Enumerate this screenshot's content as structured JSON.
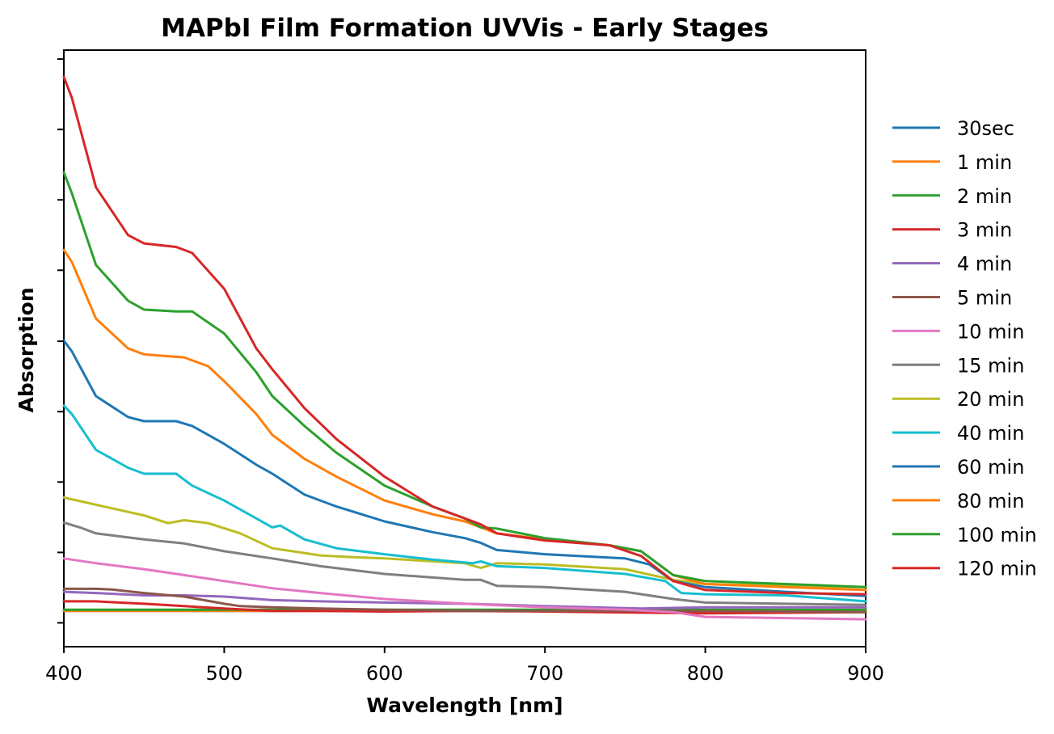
{
  "chart_data": {
    "type": "line",
    "title": "MAPbI Film Formation UVVis - Early Stages",
    "xlabel": "Wavelength [nm]",
    "ylabel": "Absorption",
    "xlim": [
      400,
      900
    ],
    "ylim": [
      0,
      1
    ],
    "x_ticks": [
      400,
      500,
      600,
      700,
      800,
      900
    ],
    "y_ticks": [
      0.04,
      0.158,
      0.276,
      0.394,
      0.512,
      0.631,
      0.749,
      0.867,
      0.985
    ],
    "y_tick_labels_visible": false,
    "grid": false,
    "legend_position": "outside-right",
    "series": [
      {
        "name": "30sec",
        "color": "#1f77b4",
        "x": [
          400,
          900
        ],
        "y": [
          0.06,
          0.06
        ]
      },
      {
        "name": "1 min",
        "color": "#ff7f0e",
        "x": [
          400,
          900
        ],
        "y": [
          0.06,
          0.06
        ]
      },
      {
        "name": "2 min",
        "color": "#2ca02c",
        "x": [
          400,
          900
        ],
        "y": [
          0.062,
          0.062
        ]
      },
      {
        "name": "3 min",
        "color": "#d62728",
        "x": [
          400,
          420,
          450,
          475,
          500,
          530,
          560,
          600,
          650,
          700,
          800,
          900
        ],
        "y": [
          0.076,
          0.076,
          0.072,
          0.068,
          0.064,
          0.06,
          0.06,
          0.059,
          0.06,
          0.059,
          0.056,
          0.058
        ]
      },
      {
        "name": "4 min",
        "color": "#9467bd",
        "x": [
          400,
          420,
          450,
          475,
          500,
          530,
          560,
          600,
          650,
          700,
          760,
          800,
          900
        ],
        "y": [
          0.092,
          0.09,
          0.086,
          0.086,
          0.084,
          0.078,
          0.076,
          0.074,
          0.072,
          0.068,
          0.064,
          0.066,
          0.066
        ]
      },
      {
        "name": "5 min",
        "color": "#8c564b",
        "x": [
          400,
          410,
          420,
          430,
          450,
          475,
          500,
          510,
          530,
          560,
          600,
          650,
          700,
          800,
          900
        ],
        "y": [
          0.097,
          0.097,
          0.097,
          0.096,
          0.09,
          0.084,
          0.072,
          0.068,
          0.066,
          0.064,
          0.062,
          0.06,
          0.06,
          0.06,
          0.058
        ]
      },
      {
        "name": "10 min",
        "color": "#e377c2",
        "x": [
          400,
          420,
          450,
          475,
          500,
          530,
          560,
          600,
          650,
          700,
          750,
          780,
          800,
          900
        ],
        "y": [
          0.148,
          0.14,
          0.13,
          0.12,
          0.11,
          0.098,
          0.09,
          0.08,
          0.072,
          0.066,
          0.062,
          0.058,
          0.05,
          0.046
        ]
      },
      {
        "name": "15 min",
        "color": "#7f7f7f",
        "x": [
          400,
          410,
          420,
          450,
          475,
          500,
          530,
          560,
          600,
          650,
          660,
          670,
          700,
          750,
          780,
          800,
          850,
          900
        ],
        "y": [
          0.208,
          0.2,
          0.19,
          0.18,
          0.173,
          0.16,
          0.148,
          0.135,
          0.122,
          0.112,
          0.112,
          0.102,
          0.1,
          0.092,
          0.08,
          0.074,
          0.072,
          0.07
        ]
      },
      {
        "name": "20 min",
        "color": "#bcbd22",
        "x": [
          400,
          410,
          420,
          450,
          465,
          475,
          490,
          510,
          530,
          560,
          580,
          600,
          650,
          660,
          670,
          700,
          750,
          780,
          800,
          850,
          900
        ],
        "y": [
          0.25,
          0.244,
          0.238,
          0.22,
          0.207,
          0.212,
          0.207,
          0.19,
          0.165,
          0.153,
          0.15,
          0.148,
          0.14,
          0.132,
          0.14,
          0.138,
          0.13,
          0.112,
          0.105,
          0.102,
          0.1
        ]
      },
      {
        "name": "40 min",
        "color": "#17becf",
        "x": [
          400,
          405,
          420,
          440,
          450,
          470,
          480,
          500,
          520,
          530,
          535,
          550,
          570,
          600,
          630,
          655,
          660,
          670,
          700,
          750,
          775,
          785,
          800,
          850,
          900
        ],
        "y": [
          0.404,
          0.39,
          0.33,
          0.3,
          0.29,
          0.29,
          0.27,
          0.245,
          0.215,
          0.2,
          0.203,
          0.18,
          0.165,
          0.155,
          0.146,
          0.14,
          0.143,
          0.135,
          0.132,
          0.122,
          0.11,
          0.09,
          0.088,
          0.086,
          0.076
        ]
      },
      {
        "name": "60 min",
        "color": "#1f77b4",
        "x": [
          400,
          405,
          420,
          440,
          450,
          470,
          480,
          500,
          520,
          530,
          550,
          570,
          600,
          630,
          650,
          660,
          670,
          700,
          750,
          765,
          780,
          800,
          850,
          900
        ],
        "y": [
          0.513,
          0.495,
          0.42,
          0.385,
          0.378,
          0.378,
          0.37,
          0.34,
          0.305,
          0.29,
          0.255,
          0.235,
          0.21,
          0.192,
          0.182,
          0.174,
          0.162,
          0.155,
          0.148,
          0.138,
          0.11,
          0.1,
          0.092,
          0.085
        ]
      },
      {
        "name": "80 min",
        "color": "#ff7f0e",
        "x": [
          400,
          405,
          420,
          440,
          450,
          475,
          490,
          500,
          520,
          530,
          550,
          570,
          600,
          630,
          650,
          660,
          670,
          700,
          740,
          760,
          780,
          800,
          850,
          900
        ],
        "y": [
          0.665,
          0.645,
          0.55,
          0.5,
          0.49,
          0.485,
          0.47,
          0.445,
          0.39,
          0.355,
          0.315,
          0.285,
          0.245,
          0.222,
          0.21,
          0.2,
          0.19,
          0.18,
          0.17,
          0.16,
          0.12,
          0.105,
          0.1,
          0.095
        ]
      },
      {
        "name": "100 min",
        "color": "#2ca02c",
        "x": [
          400,
          405,
          420,
          440,
          450,
          470,
          480,
          500,
          520,
          530,
          550,
          570,
          600,
          630,
          650,
          660,
          670,
          700,
          740,
          760,
          780,
          800,
          850,
          900
        ],
        "y": [
          0.795,
          0.76,
          0.64,
          0.58,
          0.565,
          0.562,
          0.562,
          0.525,
          0.46,
          0.42,
          0.37,
          0.325,
          0.27,
          0.235,
          0.215,
          0.2,
          0.198,
          0.182,
          0.17,
          0.16,
          0.12,
          0.11,
          0.105,
          0.1
        ]
      },
      {
        "name": "120 min",
        "color": "#d62728",
        "x": [
          400,
          405,
          420,
          440,
          450,
          470,
          480,
          500,
          520,
          530,
          550,
          570,
          600,
          630,
          650,
          660,
          670,
          700,
          740,
          760,
          780,
          800,
          850,
          900
        ],
        "y": [
          0.955,
          0.92,
          0.77,
          0.69,
          0.676,
          0.67,
          0.66,
          0.6,
          0.5,
          0.465,
          0.4,
          0.348,
          0.285,
          0.235,
          0.215,
          0.205,
          0.19,
          0.178,
          0.17,
          0.152,
          0.11,
          0.095,
          0.09,
          0.088
        ]
      }
    ]
  }
}
